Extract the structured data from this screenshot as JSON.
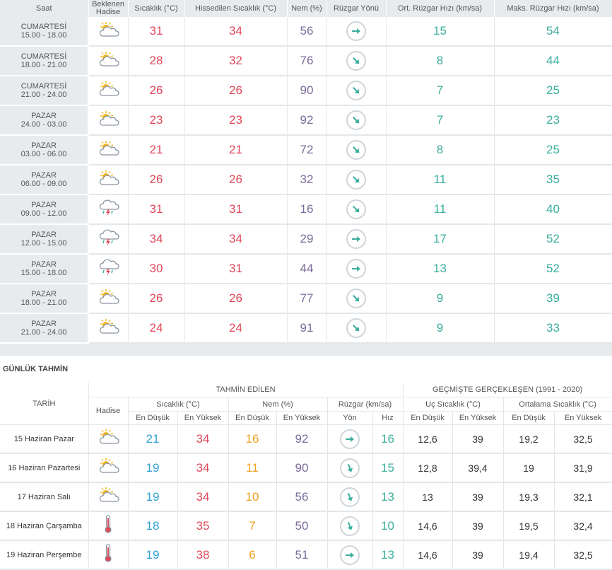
{
  "hourly": {
    "headers": {
      "time": "Saat",
      "event_line1": "Beklenen",
      "event_line2": "Hadise",
      "temp": "Sıcaklık (°C)",
      "feels": "Hissedilen Sıcaklık (°C)",
      "humidity": "Nem (%)",
      "wind_dir": "Rüzgar Yönü",
      "avg_wind": "Ort. Rüzgar Hızı (km/sa)",
      "max_wind": "Maks. Rüzgar Hızı (km/sa)"
    },
    "rows": [
      {
        "day": "CUMARTESİ",
        "range": "15.00 - 18.00",
        "icon": "partly-cloudy-icon",
        "temp": "31",
        "feels": "34",
        "hum": "56",
        "dir": "east",
        "avg": "15",
        "max": "54"
      },
      {
        "day": "CUMARTESİ",
        "range": "18.00 - 21.00",
        "icon": "partly-cloudy-icon",
        "temp": "28",
        "feels": "32",
        "hum": "76",
        "dir": "southeast",
        "avg": "8",
        "max": "44"
      },
      {
        "day": "CUMARTESİ",
        "range": "21.00 - 24.00",
        "icon": "partly-cloudy-icon",
        "temp": "26",
        "feels": "26",
        "hum": "90",
        "dir": "southeast",
        "avg": "7",
        "max": "25"
      },
      {
        "day": "PAZAR",
        "range": "24.00 - 03.00",
        "icon": "partly-cloudy-icon",
        "temp": "23",
        "feels": "23",
        "hum": "92",
        "dir": "southeast",
        "avg": "7",
        "max": "23"
      },
      {
        "day": "PAZAR",
        "range": "03.00 - 06.00",
        "icon": "partly-cloudy-icon",
        "temp": "21",
        "feels": "21",
        "hum": "72",
        "dir": "southeast",
        "avg": "8",
        "max": "25"
      },
      {
        "day": "PAZAR",
        "range": "06.00 - 09.00",
        "icon": "partly-cloudy-icon",
        "temp": "26",
        "feels": "26",
        "hum": "32",
        "dir": "southeast",
        "avg": "11",
        "max": "35"
      },
      {
        "day": "PAZAR",
        "range": "09.00 - 12.00",
        "icon": "thunderstorm-icon",
        "temp": "31",
        "feels": "31",
        "hum": "16",
        "dir": "southeast",
        "avg": "11",
        "max": "40"
      },
      {
        "day": "PAZAR",
        "range": "12.00 - 15.00",
        "icon": "thunderstorm-icon",
        "temp": "34",
        "feels": "34",
        "hum": "29",
        "dir": "east",
        "avg": "17",
        "max": "52"
      },
      {
        "day": "PAZAR",
        "range": "15.00 - 18.00",
        "icon": "thunderstorm-icon",
        "temp": "30",
        "feels": "31",
        "hum": "44",
        "dir": "east",
        "avg": "13",
        "max": "52"
      },
      {
        "day": "PAZAR",
        "range": "18.00 - 21.00",
        "icon": "partly-cloudy-icon",
        "temp": "26",
        "feels": "26",
        "hum": "77",
        "dir": "southeast",
        "avg": "9",
        "max": "39"
      },
      {
        "day": "PAZAR",
        "range": "21.00 - 24.00",
        "icon": "partly-cloudy-icon",
        "temp": "24",
        "feels": "24",
        "hum": "91",
        "dir": "southeast",
        "avg": "9",
        "max": "33"
      }
    ]
  },
  "daily": {
    "title": "GÜNLÜK TAHMİN",
    "headers": {
      "date": "TARİH",
      "forecast": "TAHMİN EDİLEN",
      "history": "GEÇMİŞTE GERÇEKLEŞEN (1991 - 2020)",
      "event": "Hadise",
      "temp": "Sıcaklık (°C)",
      "humidity": "Nem (%)",
      "wind": "Rüzgar (km/sa)",
      "extreme": "Uç Sıcaklık (°C)",
      "average": "Ortalama Sıcaklık (°C)",
      "low": "En Düşük",
      "high": "En Yüksek",
      "dir": "Yön",
      "speed": "Hız"
    },
    "rows": [
      {
        "date": "15 Haziran Pazar",
        "icon": "partly-cloudy-icon",
        "tlow": "21",
        "thigh": "34",
        "hlow": "16",
        "hhigh": "92",
        "dir": "east",
        "speed": "16",
        "xlow": "12,6",
        "xhigh": "39",
        "alow": "19,2",
        "ahigh": "32,5"
      },
      {
        "date": "16 Haziran Pazartesi",
        "icon": "partly-cloudy-icon",
        "tlow": "19",
        "thigh": "34",
        "hlow": "11",
        "hhigh": "90",
        "dir": "south-southeast",
        "speed": "15",
        "xlow": "12,8",
        "xhigh": "39,4",
        "alow": "19",
        "ahigh": "31,9"
      },
      {
        "date": "17 Haziran Salı",
        "icon": "partly-cloudy-icon",
        "tlow": "19",
        "thigh": "34",
        "hlow": "10",
        "hhigh": "56",
        "dir": "south-southeast",
        "speed": "13",
        "xlow": "13",
        "xhigh": "39",
        "alow": "19,3",
        "ahigh": "32,1"
      },
      {
        "date": "18 Haziran Çarşamba",
        "icon": "thermometer-icon",
        "tlow": "18",
        "thigh": "35",
        "hlow": "7",
        "hhigh": "50",
        "dir": "south-southeast",
        "speed": "10",
        "xlow": "14,6",
        "xhigh": "39",
        "alow": "19,5",
        "ahigh": "32,4"
      },
      {
        "date": "19 Haziran Perşembe",
        "icon": "thermometer-icon",
        "tlow": "19",
        "thigh": "38",
        "hlow": "6",
        "hhigh": "51",
        "dir": "east",
        "speed": "13",
        "xlow": "14,6",
        "xhigh": "39",
        "alow": "19,4",
        "ahigh": "32,5"
      }
    ]
  },
  "colors": {
    "low": "#2e9fd0",
    "high": "#e0485a",
    "humidity_low": "#f0a020",
    "teal": "#3aae9c",
    "header_bg": "#e8ebee"
  }
}
